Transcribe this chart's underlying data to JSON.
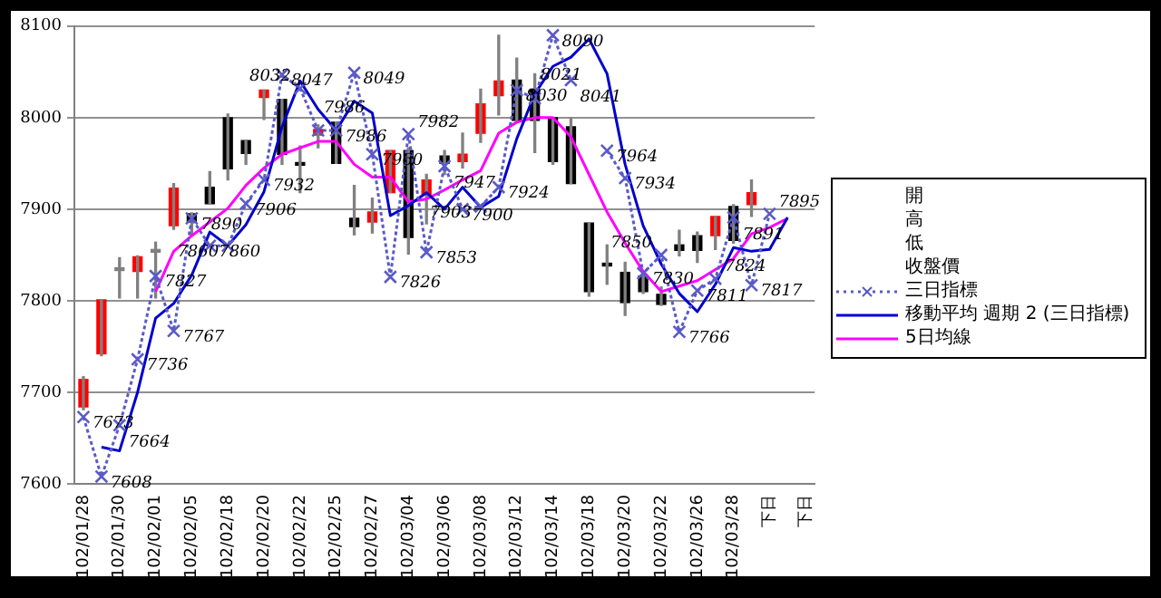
{
  "chart_data": {
    "type": "candlestick",
    "categories": [
      "102/01/28",
      null,
      "102/01/30",
      null,
      "102/02/01",
      null,
      "102/02/05",
      null,
      "102/02/18",
      null,
      "102/02/20",
      null,
      "102/02/22",
      null,
      "102/02/25",
      null,
      "102/02/27",
      null,
      "102/03/04",
      null,
      "102/03/06",
      null,
      "102/03/08",
      null,
      "102/03/12",
      null,
      "102/03/14",
      null,
      "102/03/18",
      null,
      "102/03/20",
      null,
      "102/03/22",
      null,
      "102/03/26",
      null,
      "102/03/28",
      null,
      "下日",
      null,
      "下日"
    ],
    "ohlc": [
      [
        7684,
        7717,
        7681,
        7714
      ],
      [
        7742,
        7801,
        7740,
        7801
      ],
      [
        7836,
        7847,
        7803,
        7833
      ],
      [
        7832,
        7849,
        7803,
        7848
      ],
      [
        7856,
        7864,
        7803,
        7853
      ],
      [
        7882,
        7928,
        7878,
        7923
      ],
      [
        7895,
        7896,
        7871,
        7886
      ],
      [
        7924,
        7941,
        7906,
        7906
      ],
      [
        8000,
        8004,
        7932,
        7944
      ],
      [
        7975,
        7975,
        7949,
        7961
      ],
      [
        8022,
        8030,
        7998,
        8030
      ],
      [
        8020,
        8020,
        7949,
        7960
      ],
      [
        7951,
        7969,
        7918,
        7948
      ],
      [
        7981,
        7992,
        7967,
        7987
      ],
      [
        7995,
        7995,
        7950,
        7950
      ],
      [
        7890,
        7926,
        7872,
        7881
      ],
      [
        7886,
        7912,
        7874,
        7897
      ],
      [
        7918,
        7964,
        7918,
        7964
      ],
      [
        7964,
        7967,
        7851,
        7869
      ],
      [
        7916,
        7938,
        7884,
        7932
      ],
      [
        7958,
        7964,
        7938,
        7950
      ],
      [
        7952,
        7983,
        7945,
        7960
      ],
      [
        7983,
        8031,
        7973,
        8015
      ],
      [
        8024,
        8090,
        8003,
        8040
      ],
      [
        8041,
        8065,
        7997,
        7997
      ],
      [
        8031,
        8048,
        7962,
        7997
      ],
      [
        8000,
        8000,
        7949,
        7952
      ],
      [
        7990,
        8000,
        7928,
        7928
      ],
      [
        7885,
        7885,
        7805,
        7810
      ],
      [
        7841,
        7861,
        7818,
        7838
      ],
      [
        7831,
        7842,
        7784,
        7798
      ],
      [
        7827,
        7832,
        7808,
        7810
      ],
      [
        7807,
        7815,
        7795,
        7796
      ],
      [
        7861,
        7877,
        7849,
        7855
      ],
      [
        7871,
        7875,
        7842,
        7855
      ],
      [
        7871,
        7892,
        7856,
        7892
      ],
      [
        7903,
        7905,
        7863,
        7866
      ],
      [
        7905,
        7932,
        7892,
        7918
      ],
      null,
      null,
      null
    ],
    "colors": [
      "#ff0000",
      "#ff0000",
      "#808080",
      "#ff0000",
      "#808080",
      "#ff0000",
      "#000000",
      "#000000",
      "#000000",
      "#000000",
      "#ff0000",
      "#000000",
      "#000000",
      "#ff0000",
      "#000000",
      "#000000",
      "#ff0000",
      "#ff0000",
      "#000000",
      "#ff0000",
      "#000000",
      "#ff0000",
      "#ff0000",
      "#ff0000",
      "#000000",
      "#000000",
      "#000000",
      "#000000",
      "#000000",
      "#000000",
      "#000000",
      "#000000",
      "#000000",
      "#000000",
      "#000000",
      "#ff0000",
      "#000000",
      "#ff0000",
      null,
      null,
      null
    ],
    "series": [
      {
        "type": "line",
        "name": "三日指標",
        "color": "#5a5ac8",
        "line_style": "dotted",
        "marker": "cross",
        "values": [
          7673,
          7608,
          7664,
          7736,
          7827,
          7767,
          7890,
          7860,
          7860,
          7906,
          7932,
          8047,
          8032,
          7986,
          7986,
          8049,
          7960,
          7826,
          7982,
          7853,
          7947,
          7900,
          7903,
          7924,
          8030,
          8021,
          8090,
          8041,
          null,
          7964,
          7934,
          7830,
          7850,
          7766,
          7811,
          7824,
          7891,
          7817,
          7895,
          null,
          null
        ],
        "value_labels": [
          "7673",
          "7608",
          "7664",
          "7736",
          "7827",
          "7767",
          "7890",
          "7860",
          "7860",
          "7906",
          "7932",
          "8047",
          "8032",
          "7986",
          "7986",
          "8049",
          "7960",
          "7826",
          "7982",
          "7853",
          "7947",
          "7900",
          "7903",
          "7924",
          "8030",
          "8021",
          "8090",
          "8041",
          null,
          "7964",
          "7934",
          "7830",
          "7850",
          "7766",
          "7811",
          "7824",
          "7891",
          "7817",
          "7895",
          null,
          null
        ]
      },
      {
        "type": "line",
        "name": "移動平均 週期 2 (三日指標)",
        "color": "#0000cc",
        "line_style": "solid",
        "marker": "none",
        "values": [
          null,
          7640,
          7636,
          7700,
          7781,
          7797,
          7828,
          7875,
          7860,
          7883,
          7919,
          7990,
          8040,
          8009,
          7986,
          8018,
          8005,
          7893,
          7904,
          7918,
          7900,
          7924,
          7902,
          7914,
          7977,
          8026,
          8056,
          8066,
          8086,
          8048,
          7949,
          7882,
          7840,
          7808,
          7788,
          7818,
          7858,
          7854,
          7856,
          7891,
          null
        ]
      },
      {
        "type": "line",
        "name": "5日均線",
        "color": "#ff00ff",
        "line_style": "solid",
        "marker": "none",
        "values": [
          null,
          null,
          null,
          null,
          7810,
          7854,
          7871,
          7886,
          7901,
          7926,
          7945,
          7960,
          7967,
          7974,
          7974,
          7949,
          7935,
          7935,
          7908,
          7911,
          7921,
          7932,
          7942,
          7983,
          7995,
          8000,
          8000,
          7979,
          7938,
          7897,
          7863,
          7832,
          7810,
          7816,
          7822,
          7834,
          7846,
          7873,
          7880,
          7890,
          null
        ]
      }
    ],
    "annotations": [
      "開",
      "高",
      "低",
      "收盤價"
    ],
    "ylim": [
      7600,
      8100
    ],
    "yticks": [
      7600,
      7700,
      7800,
      7900,
      8000,
      8100
    ],
    "grid": "y",
    "legend": "right"
  }
}
